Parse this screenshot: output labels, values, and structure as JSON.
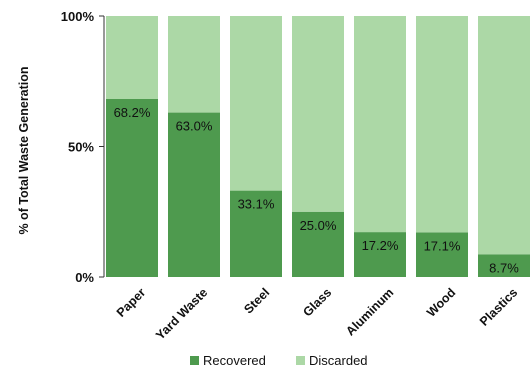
{
  "chart_data": {
    "type": "bar",
    "stacked": true,
    "categories": [
      "Paper",
      "Yard Waste",
      "Steel",
      "Glass",
      "Aluminum",
      "Wood",
      "Plastics"
    ],
    "series": [
      {
        "name": "Recovered",
        "color": "#4e9a4e",
        "values": [
          68.2,
          63.0,
          33.1,
          25.0,
          17.2,
          17.1,
          8.7
        ]
      },
      {
        "name": "Discarded",
        "color": "#acd8a6",
        "values": [
          31.8,
          37.0,
          66.9,
          75.0,
          82.8,
          82.9,
          91.3
        ]
      }
    ],
    "data_labels": [
      "68.2%",
      "63.0%",
      "33.1%",
      "25.0%",
      "17.2%",
      "17.1%",
      "8.7%"
    ],
    "ylabel": "% of Total Waste Generation",
    "yticks": [
      {
        "value": 0,
        "label": "0%"
      },
      {
        "value": 50,
        "label": "50%"
      },
      {
        "value": 100,
        "label": "100%"
      }
    ],
    "ylim": [
      0,
      100
    ],
    "grid": false,
    "legend": "bottom"
  }
}
